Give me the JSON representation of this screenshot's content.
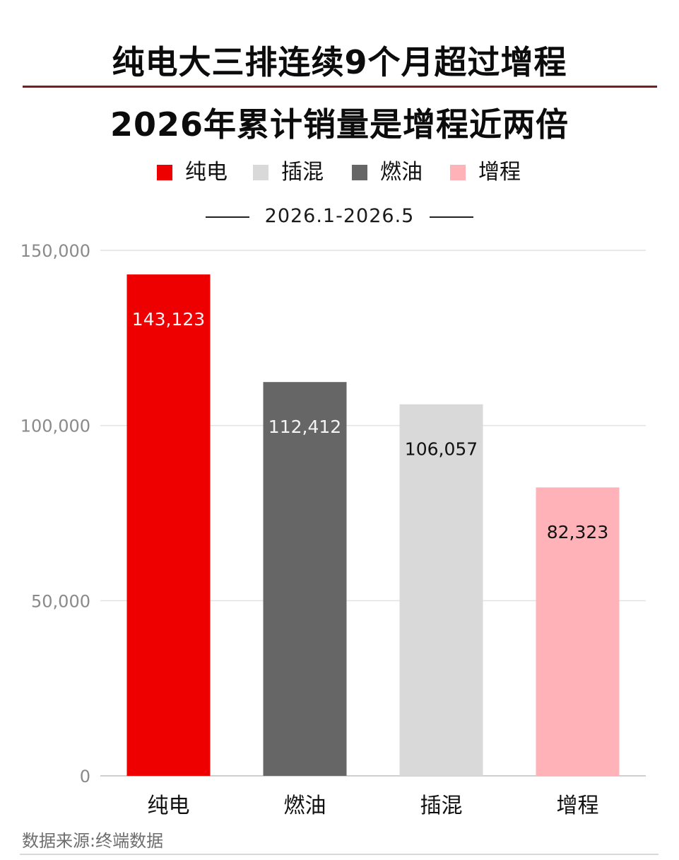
{
  "header": {
    "title_line1": "纯电大三排连续9个月超过增程",
    "title_line2": "2026年累计销量是增程近两倍",
    "date_range": "2026.1-2026.5"
  },
  "legend": [
    {
      "label": "纯电",
      "color": "#ee0000"
    },
    {
      "label": "插混",
      "color": "#d9d9d9"
    },
    {
      "label": "燃油",
      "color": "#666666"
    },
    {
      "label": "增程",
      "color": "#ffb3b8"
    }
  ],
  "chart_data": {
    "type": "bar",
    "categories": [
      "纯电",
      "燃油",
      "插混",
      "增程"
    ],
    "values": [
      143123,
      112412,
      106057,
      82323
    ],
    "value_labels": [
      "143,123",
      "112,412",
      "106,057",
      "82,323"
    ],
    "colors": [
      "#ee0000",
      "#666666",
      "#d9d9d9",
      "#ffb3b8"
    ],
    "label_colors": [
      "#f4f4f4",
      "#f4f4f4",
      "#111111",
      "#111111"
    ],
    "ylim": [
      0,
      150000
    ],
    "yticks": [
      0,
      50000,
      100000,
      150000
    ],
    "ytick_labels": [
      "0",
      "50,000",
      "100,000",
      "150,000"
    ],
    "grid": true,
    "legend_position": "top-center"
  },
  "footer": {
    "source": "数据来源:终端数据"
  }
}
